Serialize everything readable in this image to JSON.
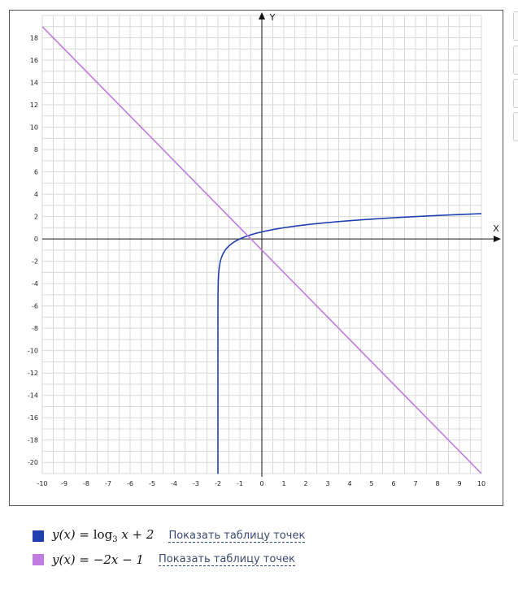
{
  "chart_data": {
    "type": "line",
    "xlabel": "X",
    "ylabel": "Y",
    "xlim": [
      -10,
      10
    ],
    "ylim": [
      -21,
      20
    ],
    "x_ticks": [
      -10,
      -9,
      -8,
      -7,
      -6,
      -5,
      -4,
      -3,
      -2,
      -1,
      0,
      1,
      2,
      3,
      4,
      5,
      6,
      7,
      8,
      9,
      10
    ],
    "y_ticks": [
      18,
      16,
      14,
      12,
      10,
      8,
      6,
      4,
      2,
      0,
      -2,
      -4,
      -6,
      -8,
      -10,
      -12,
      -14,
      -16,
      -18,
      -20
    ],
    "grid": true,
    "series": [
      {
        "name": "y(x) = log_3(x + 2)",
        "color": "#1f3fb0",
        "function": "log3(x+2)",
        "x": [
          -1.999,
          -1.99,
          -1.95,
          -1.9,
          -1.8,
          -1.6,
          -1.3,
          -1,
          -0.5,
          0,
          1,
          2,
          3,
          4,
          5,
          6,
          7,
          8,
          9,
          10
        ],
        "y": [
          -6.29,
          -4.19,
          -2.73,
          -2.1,
          -1.46,
          -0.83,
          -0.32,
          0,
          0.37,
          0.63,
          1.0,
          1.26,
          1.46,
          1.63,
          1.77,
          1.89,
          2.0,
          2.1,
          2.18,
          2.26
        ]
      },
      {
        "name": "y(x) = -2x - 1",
        "color": "#c07ae0",
        "function": "-2x-1",
        "x": [
          -10,
          10
        ],
        "y": [
          19,
          -21
        ]
      }
    ]
  },
  "legend": {
    "items": [
      {
        "formula_lhs": "y(x) = ",
        "formula_fn": "log",
        "formula_sub": "3",
        "formula_rest": " x + 2",
        "link": "Показать таблицу точек",
        "color": "#1f3fb0"
      },
      {
        "formula_lhs": "y(x) = ",
        "formula_fn": "",
        "formula_sub": "",
        "formula_rest": "−2x − 1",
        "link": "Показать таблицу точек",
        "color": "#c07ae0"
      }
    ]
  }
}
